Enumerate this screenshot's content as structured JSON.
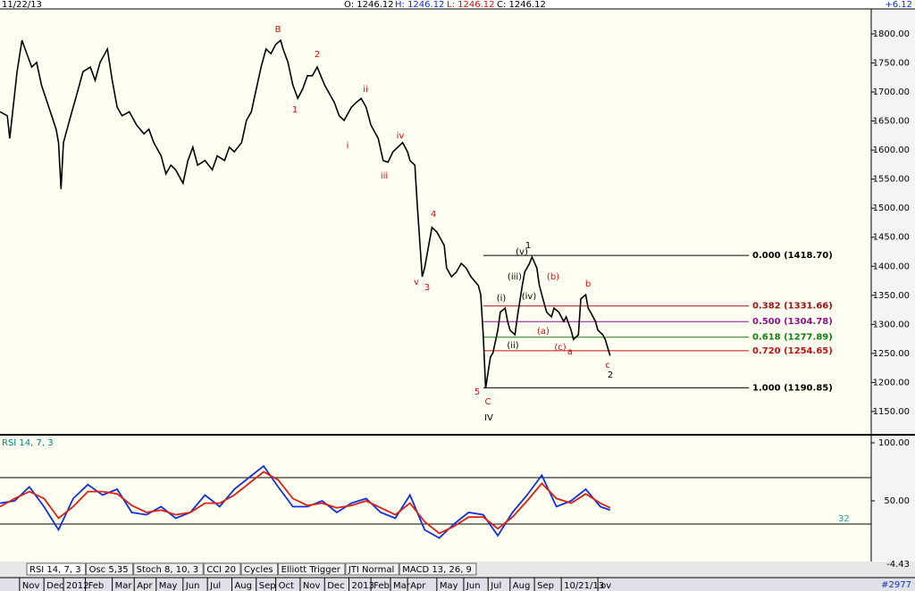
{
  "header": {
    "date": "11/22/13",
    "open": "O: 1246.12",
    "high": "H: 1246.12",
    "low": "L: 1246.12",
    "close": "C: 1246.12",
    "change": "+6.12"
  },
  "status": {
    "lower_value": "-4.43",
    "count": "#2977"
  },
  "tabs": [
    "RSI 14, 7, 3",
    "Osc 5,35",
    "Stoch 8, 10, 3",
    "CCI 20",
    "Cycles",
    "Elliott Trigger",
    "JTI Normal",
    "MACD 13, 26, 9"
  ],
  "chart_data": [
    {
      "type": "line",
      "xlim": [
        -0.8,
        34.9
      ],
      "ylim": [
        1113,
        1843
      ],
      "yticks": [
        {
          "value": 1150,
          "label": "1150.00"
        },
        {
          "value": 1200,
          "label": "1200.00"
        },
        {
          "value": 1250,
          "label": "1250.00"
        },
        {
          "value": 1300,
          "label": "1300.00"
        },
        {
          "value": 1350,
          "label": "1350.00"
        },
        {
          "value": 1400,
          "label": "1400.00"
        },
        {
          "value": 1450,
          "label": "1450.00"
        },
        {
          "value": 1500,
          "label": "1500.00"
        },
        {
          "value": 1550,
          "label": "1550.00"
        },
        {
          "value": 1600,
          "label": "1600.00"
        },
        {
          "value": 1650,
          "label": "1650.00"
        },
        {
          "value": 1700,
          "label": "1700.00"
        },
        {
          "value": 1750,
          "label": "1750.00"
        },
        {
          "value": 1800,
          "label": "1800.00"
        }
      ],
      "xticks": [
        {
          "value": 0,
          "label": "Nov"
        },
        {
          "value": 1.0,
          "label": "Dec"
        },
        {
          "value": 1.8,
          "label": "2012"
        },
        {
          "value": 2.7,
          "label": "Feb"
        },
        {
          "value": 3.8,
          "label": "Mar"
        },
        {
          "value": 4.7,
          "label": "Apr"
        },
        {
          "value": 5.6,
          "label": "May"
        },
        {
          "value": 6.7,
          "label": "Jun"
        },
        {
          "value": 7.7,
          "label": "Jul"
        },
        {
          "value": 8.7,
          "label": "Aug"
        },
        {
          "value": 9.7,
          "label": "Sep"
        },
        {
          "value": 10.5,
          "label": "Oct"
        },
        {
          "value": 11.5,
          "label": "Nov"
        },
        {
          "value": 12.5,
          "label": "Dec"
        },
        {
          "value": 13.5,
          "label": "2013"
        },
        {
          "value": 14.4,
          "label": "Feb"
        },
        {
          "value": 15.2,
          "label": "Mar"
        },
        {
          "value": 15.9,
          "label": "Apr"
        },
        {
          "value": 17.1,
          "label": "May"
        },
        {
          "value": 18.2,
          "label": "Jun"
        },
        {
          "value": 19.2,
          "label": "Jul"
        },
        {
          "value": 20.1,
          "label": "Aug"
        },
        {
          "value": 21.1,
          "label": "Sep"
        },
        {
          "value": 22.2,
          "label": "10/21/13"
        },
        {
          "value": 23.7,
          "label": "ov"
        }
      ],
      "x": [
        -0.8,
        -0.5,
        -0.4,
        -0.1,
        0.1,
        0.3,
        0.5,
        0.7,
        0.9,
        1.2,
        1.5,
        1.6,
        1.7,
        1.8,
        2.1,
        2.3,
        2.6,
        2.9,
        3.1,
        3.3,
        3.6,
        3.8,
        4.0,
        4.2,
        4.5,
        4.8,
        5.1,
        5.3,
        5.5,
        5.8,
        6.0,
        6.2,
        6.4,
        6.7,
        6.9,
        7.1,
        7.3,
        7.6,
        7.9,
        8.1,
        8.4,
        8.6,
        8.8,
        9.1,
        9.3,
        9.5,
        9.7,
        9.9,
        10.1,
        10.3,
        10.5,
        10.7,
        10.8,
        11.0,
        11.2,
        11.4,
        11.6,
        11.8,
        12.0,
        12.2,
        12.5,
        12.7,
        12.9,
        13.1,
        13.3,
        13.6,
        13.8,
        14.0,
        14.2,
        14.4,
        14.7,
        14.9,
        15.1,
        15.3,
        15.5,
        15.7,
        15.9,
        16.0,
        16.2,
        16.3,
        16.5,
        16.6,
        16.8,
        16.9,
        17.1,
        17.4,
        17.5,
        17.7,
        17.9,
        18.1,
        18.3,
        18.5,
        18.8,
        18.9,
        19.0,
        19.1,
        19.3,
        19.4,
        19.6,
        19.7,
        19.9,
        20.0,
        20.1,
        20.3,
        20.4,
        20.6,
        20.7,
        20.9,
        21.0,
        21.2,
        21.3,
        21.5,
        21.6,
        21.8,
        21.9,
        22.1,
        22.3,
        22.4,
        22.6,
        22.7,
        22.9,
        23.0,
        23.2,
        23.3,
        23.4,
        23.6,
        23.7,
        23.9,
        24.0,
        24.2
      ],
      "series": [
        {
          "color": "#000000",
          "values": [
            1666,
            1659,
            1620,
            1735,
            1789,
            1766,
            1743,
            1751,
            1712,
            1674,
            1636,
            1613,
            1533,
            1613,
            1659,
            1689,
            1735,
            1743,
            1720,
            1751,
            1774,
            1720,
            1674,
            1659,
            1666,
            1643,
            1628,
            1636,
            1613,
            1590,
            1559,
            1574,
            1566,
            1543,
            1582,
            1605,
            1574,
            1582,
            1566,
            1590,
            1582,
            1605,
            1597,
            1613,
            1651,
            1666,
            1705,
            1743,
            1774,
            1766,
            1782,
            1789,
            1774,
            1751,
            1712,
            1689,
            1705,
            1728,
            1728,
            1743,
            1712,
            1697,
            1682,
            1659,
            1651,
            1674,
            1682,
            1689,
            1674,
            1643,
            1620,
            1582,
            1579,
            1597,
            1605,
            1613,
            1597,
            1582,
            1574,
            1505,
            1382,
            1397,
            1444,
            1467,
            1459,
            1436,
            1397,
            1382,
            1390,
            1405,
            1397,
            1382,
            1367,
            1351,
            1282,
            1190,
            1244,
            1251,
            1290,
            1321,
            1328,
            1305,
            1290,
            1282,
            1313,
            1367,
            1390,
            1405,
            1416,
            1397,
            1367,
            1336,
            1321,
            1313,
            1328,
            1321,
            1305,
            1313,
            1290,
            1274,
            1282,
            1344,
            1351,
            1328,
            1321,
            1305,
            1290,
            1282,
            1274,
            1246
          ]
        }
      ],
      "fib_levels": [
        {
          "value": 1418.7,
          "label": "0.000 (1418.70)",
          "color": "#000000"
        },
        {
          "value": 1331.66,
          "label": "0.382 (1331.66)",
          "color": "#a01010"
        },
        {
          "value": 1304.78,
          "label": "0.500 (1304.78)",
          "color": "#901090"
        },
        {
          "value": 1277.89,
          "label": "0.618 (1277.89)",
          "color": "#108010"
        },
        {
          "value": 1254.65,
          "label": "0.720 (1254.65)",
          "color": "#c01010"
        },
        {
          "value": 1190.85,
          "label": "1.000 (1190.85)",
          "color": "#000000"
        }
      ],
      "annotations": [
        "B",
        "2",
        "1",
        "ii",
        "i",
        "iv",
        "iii",
        "4",
        "v",
        "3",
        "5",
        "C",
        "IV",
        "(v)",
        "1",
        "(iii)",
        "(i)",
        "(iv)",
        "(ii)",
        "(b)",
        "(a)",
        "(c)",
        "a",
        "b",
        "c",
        "2"
      ]
    },
    {
      "type": "line",
      "title": "RSI 14, 7, 3",
      "xlim": [
        -0.8,
        34.9
      ],
      "ylim": [
        -1.5,
        104.6
      ],
      "yticks": [
        {
          "value": 100,
          "label": "100.00"
        },
        {
          "value": 50,
          "label": "50.00"
        }
      ],
      "levels": [
        70,
        30
      ],
      "level_note": "32",
      "x": [
        -0.8,
        -0.2,
        0.4,
        1.0,
        1.6,
        2.2,
        2.8,
        3.4,
        4.0,
        4.6,
        5.2,
        5.8,
        6.4,
        7.0,
        7.6,
        8.2,
        8.8,
        9.4,
        10.0,
        10.6,
        11.2,
        11.8,
        12.4,
        13.0,
        13.6,
        14.2,
        14.8,
        15.4,
        16.0,
        16.6,
        17.2,
        17.8,
        18.4,
        19.0,
        19.6,
        20.2,
        20.8,
        21.4,
        22.0,
        22.6,
        23.2,
        23.8,
        24.2
      ],
      "series": [
        {
          "color": "#1030e0",
          "values": [
            48,
            50,
            62,
            45,
            25,
            52,
            64,
            55,
            60,
            40,
            38,
            45,
            35,
            40,
            55,
            45,
            60,
            70,
            80,
            62,
            45,
            45,
            50,
            40,
            48,
            52,
            40,
            35,
            55,
            25,
            18,
            30,
            40,
            38,
            20,
            40,
            55,
            72,
            45,
            50,
            60,
            45,
            42
          ]
        },
        {
          "color": "#e02010",
          "values": [
            45,
            52,
            58,
            52,
            35,
            45,
            58,
            58,
            56,
            46,
            40,
            42,
            38,
            40,
            48,
            48,
            55,
            65,
            75,
            68,
            52,
            46,
            48,
            44,
            46,
            50,
            44,
            38,
            48,
            32,
            22,
            28,
            36,
            36,
            26,
            36,
            50,
            65,
            52,
            48,
            56,
            48,
            44
          ]
        }
      ]
    }
  ]
}
